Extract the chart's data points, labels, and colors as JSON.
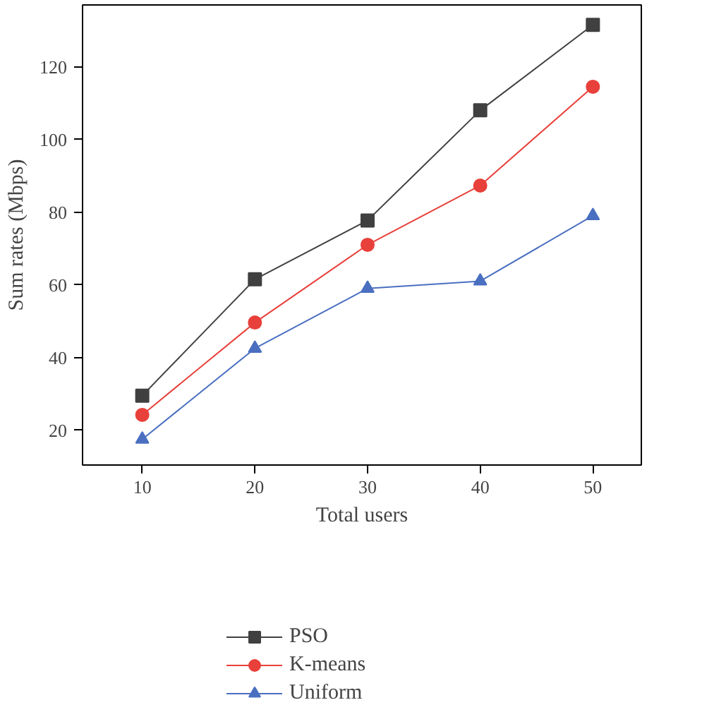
{
  "chart_data": {
    "type": "line",
    "xlabel": "Total users",
    "ylabel": "Sum rates (Mbps)",
    "x": [
      10,
      20,
      30,
      40,
      50
    ],
    "xlim": [
      4.7,
      54.3
    ],
    "ylim": [
      10.4,
      137
    ],
    "xticks": [
      10,
      20,
      30,
      40,
      50
    ],
    "yticks": [
      20,
      40,
      60,
      80,
      100,
      120
    ],
    "grid": false,
    "legend": "bottom",
    "line_style": "solid",
    "series": [
      {
        "name": "PSO",
        "color": "#404040",
        "marker": "square",
        "values": [
          29.5,
          61.5,
          77.7,
          108,
          131.5
        ]
      },
      {
        "name": "K-means",
        "color": "#e8403a",
        "marker": "circle",
        "values": [
          24.2,
          49.6,
          71,
          87.3,
          114.5
        ]
      },
      {
        "name": "Uniform",
        "color": "#4a6fc0",
        "marker": "triangle",
        "values": [
          17.5,
          42.5,
          59,
          61,
          79
        ]
      }
    ]
  }
}
